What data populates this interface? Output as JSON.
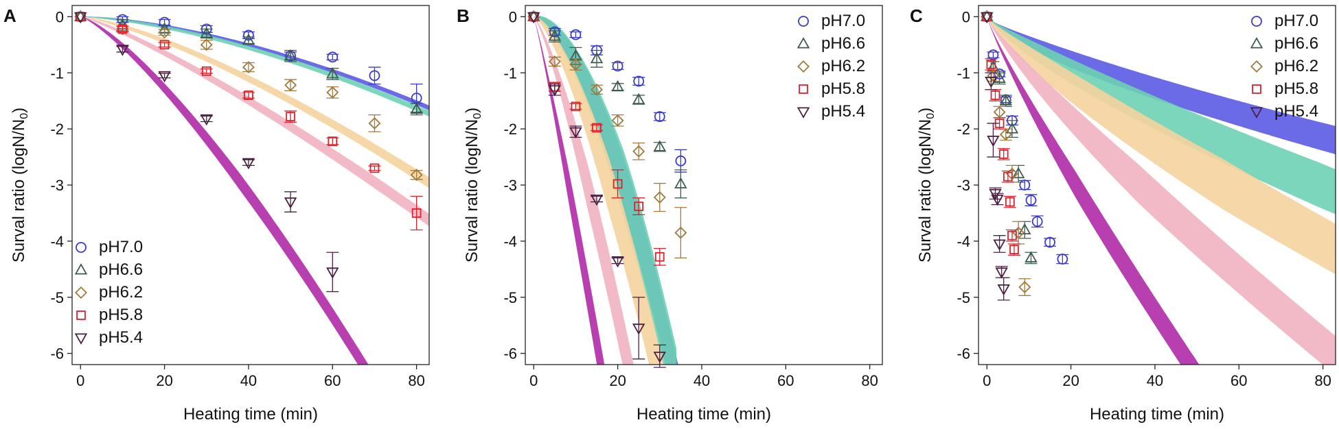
{
  "figure": {
    "x_label": "Heating time (min)",
    "y_label_main": "Surval ratio (logN/N",
    "y_label_sub": "0",
    "y_label_end": ")",
    "series_styles": [
      {
        "name": "pH7.0",
        "marker": "circle",
        "color": "#3a3acc",
        "band": "#5b5be6"
      },
      {
        "name": "pH6.6",
        "marker": "triangle-up",
        "color": "#3c5b4e",
        "band": "#6dd1b4"
      },
      {
        "name": "pH6.2",
        "marker": "diamond",
        "color": "#a07a3c",
        "band": "#f5d49e"
      },
      {
        "name": "pH5.8",
        "marker": "square",
        "color": "#e0202a",
        "band": "#efb3c0"
      },
      {
        "name": "pH5.4",
        "marker": "triangle-down",
        "color": "#4a2040",
        "band": "#b02aa6"
      }
    ]
  },
  "chart_data": [
    {
      "panel": "A",
      "type": "scatter",
      "xlabel": "Heating time (min)",
      "ylabel": "Surval ratio (logN/N0)",
      "xlim": [
        -2,
        83
      ],
      "ylim": [
        -6.2,
        0.2
      ],
      "xticks": [
        0,
        20,
        40,
        60,
        80
      ],
      "yticks": [
        0,
        -1,
        -2,
        -3,
        -4,
        -5,
        -6
      ],
      "legend": "bottom-left",
      "series": [
        {
          "name": "pH7.0",
          "points": [
            [
              0,
              0,
              0
            ],
            [
              10,
              -0.05,
              0.05
            ],
            [
              20,
              -0.1,
              0.05
            ],
            [
              30,
              -0.22,
              0.06
            ],
            [
              40,
              -0.33,
              0.06
            ],
            [
              50,
              -0.7,
              0.07
            ],
            [
              60,
              -0.72,
              0.05
            ],
            [
              70,
              -1.05,
              0.15
            ],
            [
              80,
              -1.45,
              0.25
            ]
          ],
          "band": [
            0.055,
            1.6,
            0.12
          ]
        },
        {
          "name": "pH6.6",
          "points": [
            [
              0,
              0,
              0
            ],
            [
              10,
              -0.15,
              0.1
            ],
            [
              20,
              -0.22,
              0.06
            ],
            [
              30,
              -0.3,
              0.08
            ],
            [
              40,
              -0.42,
              0.06
            ],
            [
              50,
              -0.7,
              0.1
            ],
            [
              60,
              -1.02,
              0.1
            ],
            [
              80,
              -1.65,
              0.1
            ]
          ],
          "band": [
            0.065,
            1.55,
            0.14
          ]
        },
        {
          "name": "pH6.2",
          "points": [
            [
              0,
              0,
              0
            ],
            [
              10,
              -0.22,
              0.05
            ],
            [
              20,
              -0.28,
              0.05
            ],
            [
              30,
              -0.5,
              0.08
            ],
            [
              40,
              -0.9,
              0.08
            ],
            [
              50,
              -1.22,
              0.1
            ],
            [
              60,
              -1.35,
              0.1
            ],
            [
              70,
              -1.9,
              0.15
            ],
            [
              80,
              -2.82,
              0.08
            ]
          ],
          "band": [
            0.17,
            1.35,
            0.2
          ]
        },
        {
          "name": "pH5.8",
          "points": [
            [
              0,
              0,
              0
            ],
            [
              10,
              -0.22,
              0.05
            ],
            [
              20,
              -0.5,
              0.04
            ],
            [
              30,
              -0.97,
              0.04
            ],
            [
              40,
              -1.4,
              0.05
            ],
            [
              50,
              -1.78,
              0.1
            ],
            [
              60,
              -2.22,
              0.06
            ],
            [
              70,
              -2.7,
              0.04
            ],
            [
              80,
              -3.5,
              0.3
            ]
          ],
          "band": [
            0.28,
            1.21,
            0.22
          ]
        },
        {
          "name": "pH5.4",
          "points": [
            [
              0,
              0,
              0
            ],
            [
              10,
              -0.58,
              0.05
            ],
            [
              20,
              -1.05,
              0.04
            ],
            [
              30,
              -1.82,
              0.05
            ],
            [
              40,
              -2.6,
              0.05
            ],
            [
              50,
              -3.3,
              0.18
            ],
            [
              60,
              -4.55,
              0.35
            ]
          ],
          "band": [
            0.52,
            1.3,
            0.3
          ]
        }
      ]
    },
    {
      "panel": "B",
      "type": "scatter",
      "xlabel": "Heating time (min)",
      "ylabel": "Surval ratio (logN/N0)",
      "xlim": [
        -2,
        83
      ],
      "ylim": [
        -6.2,
        0.2
      ],
      "xticks": [
        0,
        20,
        40,
        60,
        80
      ],
      "yticks": [
        0,
        -1,
        -2,
        -3,
        -4,
        -5,
        -6
      ],
      "legend": "top-right",
      "series": [
        {
          "name": "pH7.0",
          "points": [
            [
              0,
              0,
              0
            ],
            [
              5,
              -0.27,
              0.06
            ],
            [
              10,
              -0.32,
              0.05
            ],
            [
              15,
              -0.6,
              0.08
            ],
            [
              20,
              -0.88,
              0.06
            ],
            [
              25,
              -1.15,
              0.07
            ],
            [
              30,
              -1.78,
              0.07
            ],
            [
              35,
              -2.57,
              0.2
            ]
          ],
          "band": [
            0.8,
            1.72,
            1.0
          ]
        },
        {
          "name": "pH6.6",
          "points": [
            [
              0,
              0,
              0
            ],
            [
              5,
              -0.35,
              0.1
            ],
            [
              10,
              -0.7,
              0.15
            ],
            [
              15,
              -0.75,
              0.15
            ],
            [
              20,
              -1.25,
              0.06
            ],
            [
              25,
              -1.48,
              0.08
            ],
            [
              30,
              -2.32,
              0.08
            ],
            [
              35,
              -2.98,
              0.25
            ]
          ],
          "band": [
            0.82,
            1.7,
            1.3
          ]
        },
        {
          "name": "pH6.2",
          "points": [
            [
              0,
              0,
              0
            ],
            [
              5,
              -0.8,
              0.08
            ],
            [
              10,
              -0.85,
              0.1
            ],
            [
              15,
              -1.3,
              0.08
            ],
            [
              20,
              -1.85,
              0.1
            ],
            [
              25,
              -2.4,
              0.15
            ],
            [
              30,
              -3.22,
              0.25
            ],
            [
              35,
              -3.85,
              0.45
            ]
          ],
          "band": [
            1.27,
            1.48,
            1.1
          ]
        },
        {
          "name": "pH5.8",
          "points": [
            [
              0,
              0,
              0
            ],
            [
              5,
              -1.25,
              0.08
            ],
            [
              10,
              -1.6,
              0.05
            ],
            [
              15,
              -1.98,
              0.05
            ],
            [
              20,
              -2.98,
              0.25
            ],
            [
              25,
              -3.38,
              0.15
            ],
            [
              30,
              -4.28,
              0.15
            ]
          ],
          "band": [
            2.2,
            1.28,
            1.0
          ]
        },
        {
          "name": "pH5.4",
          "points": [
            [
              0,
              0,
              0
            ],
            [
              5,
              -1.3,
              0.1
            ],
            [
              10,
              -2.05,
              0.1
            ],
            [
              15,
              -3.25,
              0.05
            ],
            [
              20,
              -4.35,
              0.05
            ],
            [
              25,
              -5.55,
              0.55
            ],
            [
              30,
              -6.05,
              0.2
            ]
          ],
          "band": [
            3.7,
            1.11,
            0.9
          ]
        }
      ]
    },
    {
      "panel": "C",
      "type": "scatter",
      "xlabel": "Heating time (min)",
      "ylabel": "Surval ratio (logN/N0)",
      "xlim": [
        -2,
        83
      ],
      "ylim": [
        -6.2,
        0.2
      ],
      "xticks": [
        0,
        20,
        40,
        60,
        80
      ],
      "yticks": [
        0,
        -1,
        -2,
        -3,
        -4,
        -5,
        -6
      ],
      "legend": "top-right",
      "series": [
        {
          "name": "pH7.0",
          "points": [
            [
              0,
              0,
              0
            ],
            [
              1.5,
              -0.68,
              0.05
            ],
            [
              3,
              -1.02,
              0.05
            ],
            [
              4.5,
              -1.48,
              0.05
            ],
            [
              6,
              -1.85,
              0.08
            ],
            [
              9,
              -3.0,
              0.08
            ],
            [
              10.5,
              -3.27,
              0.1
            ],
            [
              12,
              -3.65,
              0.1
            ],
            [
              15,
              -4.02,
              0.07
            ],
            [
              18,
              -4.32,
              0.08
            ]
          ],
          "band": [
            0.45,
            0.75,
            0.6
          ]
        },
        {
          "name": "pH6.6",
          "points": [
            [
              0,
              0,
              0
            ],
            [
              1.5,
              -0.9,
              0.1
            ],
            [
              3,
              -1.1,
              0.1
            ],
            [
              4.5,
              -1.5,
              0.1
            ],
            [
              6,
              -2.0,
              0.15
            ],
            [
              7.5,
              -2.8,
              0.15
            ],
            [
              9,
              -3.8,
              0.15
            ],
            [
              10.5,
              -4.3,
              0.1
            ]
          ],
          "band": [
            0.55,
            0.82,
            0.8
          ]
        },
        {
          "name": "pH6.2",
          "points": [
            [
              0,
              0,
              0
            ],
            [
              1.5,
              -1.05,
              0.1
            ],
            [
              3,
              -1.7,
              0.1
            ],
            [
              4.5,
              -2.1,
              0.1
            ],
            [
              6,
              -2.8,
              0.15
            ],
            [
              7.5,
              -3.85,
              0.2
            ],
            [
              9,
              -4.82,
              0.15
            ]
          ],
          "band": [
            0.7,
            0.84,
            0.9
          ]
        },
        {
          "name": "pH5.8",
          "points": [
            [
              0,
              0,
              0
            ],
            [
              1,
              -0.85,
              0.1
            ],
            [
              2,
              -1.4,
              0.1
            ],
            [
              3,
              -1.9,
              0.1
            ],
            [
              4,
              -2.45,
              0.1
            ],
            [
              5,
              -2.85,
              0.1
            ],
            [
              5.5,
              -3.3,
              0.1
            ],
            [
              6,
              -3.9,
              0.1
            ],
            [
              6.5,
              -4.15,
              0.1
            ]
          ],
          "band": [
            1.0,
            0.85,
            0.7
          ]
        },
        {
          "name": "pH5.4",
          "points": [
            [
              0,
              0,
              0
            ],
            [
              1,
              -1.15,
              0.15
            ],
            [
              1.5,
              -2.2,
              0.3
            ],
            [
              2,
              -3.15,
              0.1
            ],
            [
              2.5,
              -3.25,
              0.1
            ],
            [
              3,
              -4.05,
              0.15
            ],
            [
              3.5,
              -4.55,
              0.1
            ],
            [
              4,
              -4.85,
              0.2
            ]
          ],
          "band": [
            1.55,
            0.88,
            0.5
          ]
        }
      ]
    }
  ]
}
